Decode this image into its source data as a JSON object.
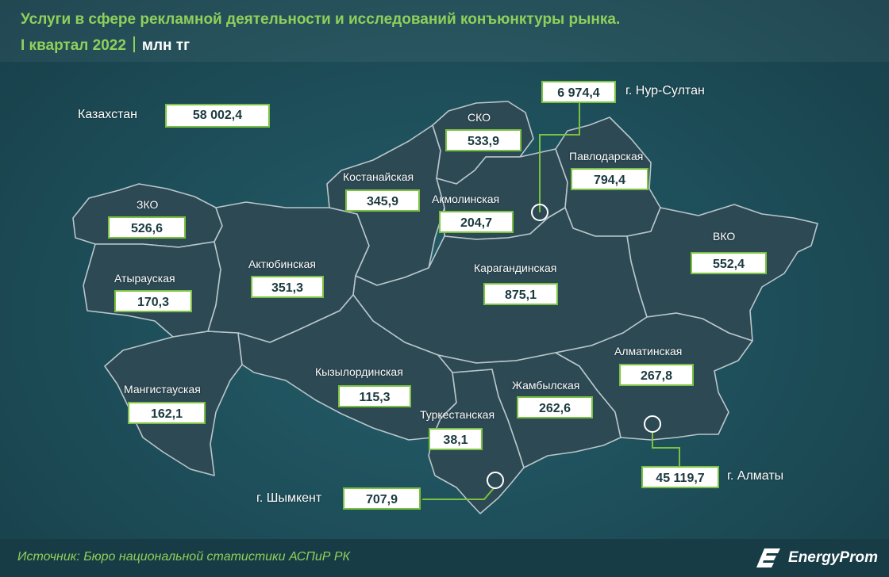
{
  "header": {
    "title": "Услуги в сфере рекламной деятельности и исследований конъюнктуры рынка.",
    "period": "I квартал 2022",
    "unit": "млн тг"
  },
  "total": {
    "label": "Казахстан",
    "value": "58 002,4"
  },
  "regions": {
    "zko": {
      "name": "ЗКО",
      "value": "526,6"
    },
    "atyrau": {
      "name": "Атырауская",
      "value": "170,3"
    },
    "mangystau": {
      "name": "Мангистауская",
      "value": "162,1"
    },
    "aktobe": {
      "name": "Актюбинская",
      "value": "351,3"
    },
    "kostanay": {
      "name": "Костанайская",
      "value": "345,9"
    },
    "sko": {
      "name": "СКО",
      "value": "533,9"
    },
    "akmola": {
      "name": "Акмолинская",
      "value": "204,7"
    },
    "pavlodar": {
      "name": "Павлодарская",
      "value": "794,4"
    },
    "karaganda": {
      "name": "Карагандинская",
      "value": "875,1"
    },
    "vko": {
      "name": "ВКО",
      "value": "552,4"
    },
    "kyzylorda": {
      "name": "Кызылординская",
      "value": "115,3"
    },
    "turkestan": {
      "name": "Туркестанская",
      "value": "38,1"
    },
    "zhambyl": {
      "name": "Жамбылская",
      "value": "262,6"
    },
    "almaty_region": {
      "name": "Алматинская",
      "value": "267,8"
    }
  },
  "cities": {
    "nursultan": {
      "name": "г. Нур-Султан",
      "value": "6 974,4"
    },
    "almaty": {
      "name": "г. Алматы",
      "value": "45 119,7"
    },
    "shymkent": {
      "name": "г. Шымкент",
      "value": "707,9"
    }
  },
  "footer": {
    "source": "Источник: Бюро национальной статистики АСПиР РК",
    "brand": "EnergyProm"
  },
  "colors": {
    "accent_green": "#7cc242",
    "title_green": "#8fd05a",
    "region_fill": "#2c4954",
    "region_border": "#b9c6cb"
  }
}
